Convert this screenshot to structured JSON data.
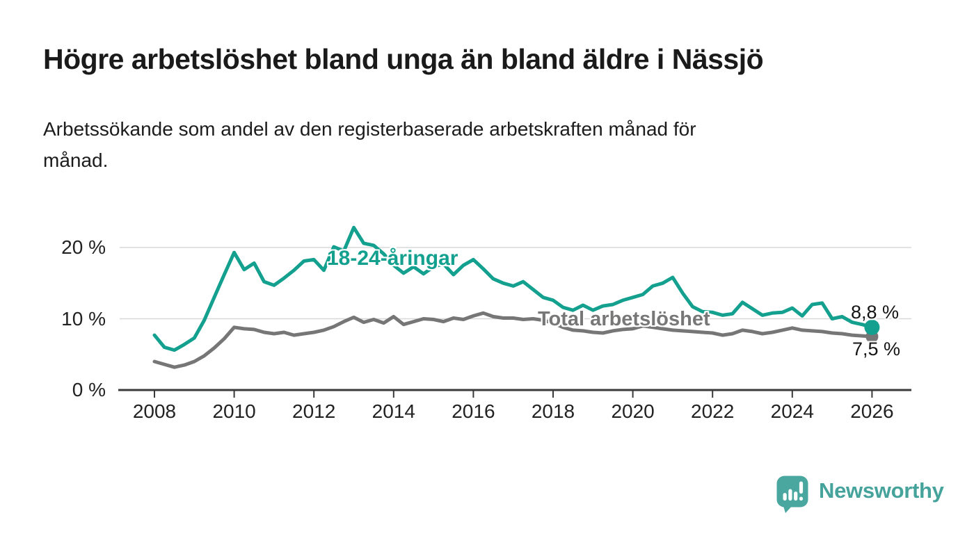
{
  "header": {
    "title": "Högre arbetslöshet bland unga än bland äldre i Nässjö",
    "subtitle": "Arbetssökande som andel av den registerbaserade arbetskraften månad för\nmånad."
  },
  "chart_data": {
    "type": "line",
    "title": "Högre arbetslöshet bland unga än bland äldre i Nässjö",
    "subtitle": "Arbetssökande som andel av den registerbaserade arbetskraften månad för månad.",
    "unit": "%",
    "x_start": 2008,
    "x_step_years": 0.25,
    "xlim": [
      2007.1,
      2027
    ],
    "ylim": [
      0,
      24
    ],
    "grid": "horizontal",
    "legend_position": "inline-labels",
    "x_ticks": [
      {
        "value": 2008,
        "label": "2008"
      },
      {
        "value": 2010,
        "label": "2010"
      },
      {
        "value": 2012,
        "label": "2012"
      },
      {
        "value": 2014,
        "label": "2014"
      },
      {
        "value": 2016,
        "label": "2016"
      },
      {
        "value": 2018,
        "label": "2018"
      },
      {
        "value": 2020,
        "label": "2020"
      },
      {
        "value": 2022,
        "label": "2022"
      },
      {
        "value": 2024,
        "label": "2024"
      },
      {
        "value": 2026,
        "label": "2026"
      }
    ],
    "y_ticks": [
      {
        "value": 0,
        "label": "0 %"
      },
      {
        "value": 10,
        "label": "10 %"
      },
      {
        "value": 20,
        "label": "20 %"
      }
    ],
    "series": [
      {
        "name": "18-24-åringar",
        "color": "#13a08f",
        "end_value": 8.8,
        "end_value_label": "8,8 %",
        "values": [
          7.7,
          6.0,
          5.6,
          6.4,
          7.3,
          9.8,
          13.0,
          16.2,
          19.3,
          16.9,
          17.8,
          15.2,
          14.7,
          15.7,
          16.8,
          18.1,
          18.3,
          16.8,
          20.1,
          19.5,
          22.8,
          20.6,
          20.3,
          19.1,
          17.5,
          16.4,
          17.3,
          16.3,
          17.3,
          17.7,
          16.2,
          17.5,
          18.3,
          17.0,
          15.6,
          15.0,
          14.6,
          15.2,
          14.1,
          13.0,
          12.6,
          11.6,
          11.2,
          11.9,
          11.2,
          11.8,
          12.0,
          12.6,
          13.0,
          13.4,
          14.6,
          15.0,
          15.8,
          13.6,
          11.7,
          11.0,
          10.9,
          10.5,
          10.7,
          12.3,
          11.4,
          10.5,
          10.8,
          10.9,
          11.5,
          10.4,
          12.0,
          12.2,
          10.0,
          10.3,
          9.5,
          9.2,
          8.8
        ]
      },
      {
        "name": "Total arbetslöshet",
        "color": "#767676",
        "end_value": 7.5,
        "end_value_label": "7,5 %",
        "values": [
          4.0,
          3.6,
          3.2,
          3.5,
          4.0,
          4.8,
          5.9,
          7.2,
          8.8,
          8.6,
          8.5,
          8.1,
          7.9,
          8.1,
          7.7,
          7.9,
          8.1,
          8.4,
          8.9,
          9.6,
          10.2,
          9.5,
          9.9,
          9.4,
          10.3,
          9.2,
          9.6,
          10.0,
          9.9,
          9.6,
          10.1,
          9.9,
          10.4,
          10.8,
          10.3,
          10.1,
          10.1,
          9.9,
          10.0,
          9.8,
          9.4,
          8.8,
          8.4,
          8.3,
          8.1,
          8.0,
          8.3,
          8.5,
          8.6,
          9.0,
          8.8,
          8.6,
          8.4,
          8.3,
          8.2,
          8.1,
          8.0,
          7.7,
          7.9,
          8.4,
          8.2,
          7.9,
          8.1,
          8.4,
          8.7,
          8.4,
          8.3,
          8.2,
          8.0,
          7.9,
          7.7,
          7.6,
          7.5
        ]
      }
    ]
  },
  "footer": {
    "brand": "Newsworthy",
    "logo_icon": "bar-chart-speech-bubble"
  },
  "colors": {
    "accent_teal": "#13a08f",
    "series_gray": "#767676",
    "grid": "#d8d8d8",
    "axis": "#3a3a3a",
    "text": "#1a1a1a",
    "brand_teal": "#45a39c",
    "logo_bubble": "#4aa79f"
  }
}
